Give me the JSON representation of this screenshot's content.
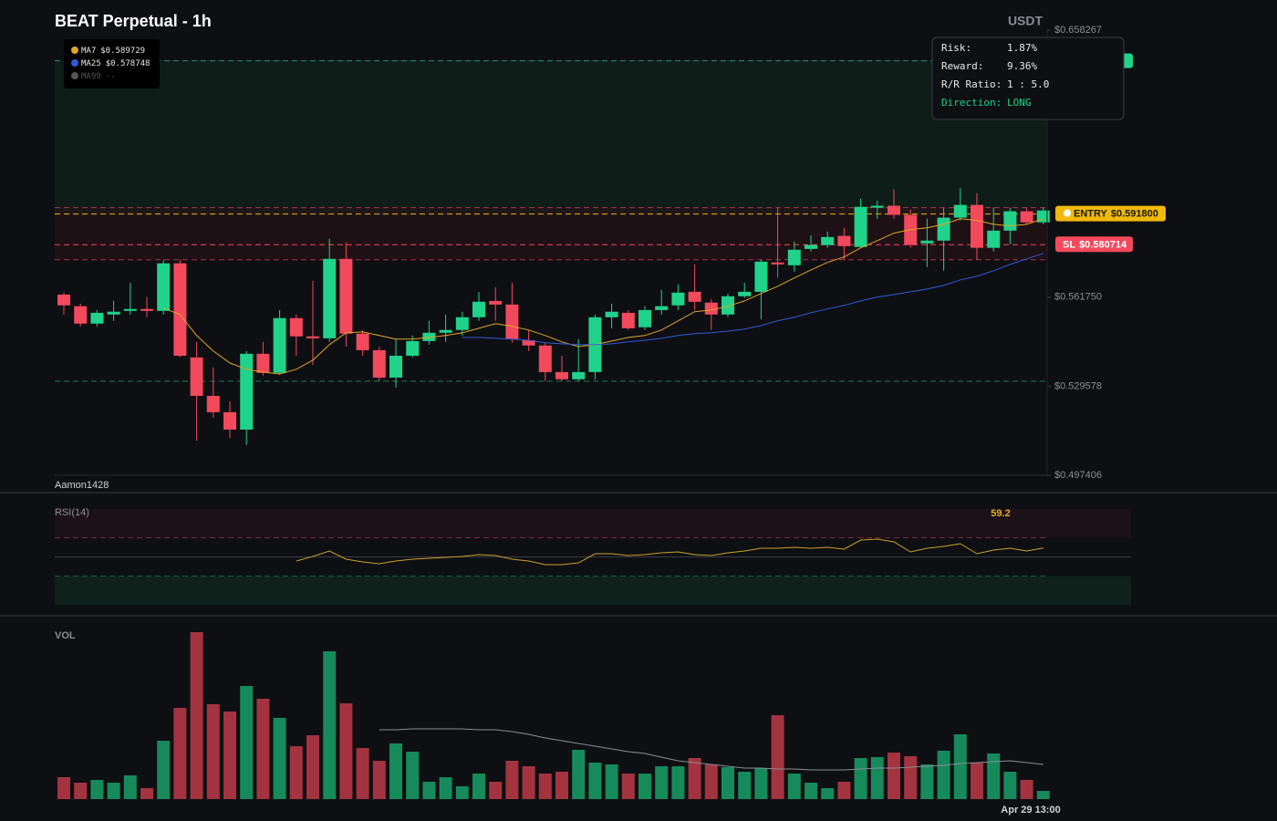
{
  "chart_data": [
    {
      "type": "candlestick",
      "title": "BEAT Perpetual - 1h",
      "currency": "USDT",
      "watermark": "Aamon1428",
      "up_color": "#1fd38a",
      "down_color": "#f2495c",
      "ylim": [
        0.497406,
        0.658267
      ],
      "yticks": [
        {
          "value": 0.658267,
          "label": "$0.658267"
        },
        {
          "value": 0.56175,
          "label": "$0.561750"
        },
        {
          "value": 0.529578,
          "label": "$0.529578"
        },
        {
          "value": 0.497406,
          "label": "$0.497406"
        }
      ],
      "open": [
        0.5627,
        0.5585,
        0.5522,
        0.5555,
        0.5568,
        0.5575,
        0.5568,
        0.574,
        0.54,
        0.5261,
        0.5202,
        0.5139,
        0.5413,
        0.5344,
        0.5542,
        0.5476,
        0.5469,
        0.5756,
        0.5486,
        0.5426,
        0.5327,
        0.5406,
        0.5459,
        0.5489,
        0.5499,
        0.5545,
        0.5604,
        0.5591,
        0.5462,
        0.5443,
        0.5347,
        0.5321,
        0.5347,
        0.5545,
        0.5561,
        0.5509,
        0.5571,
        0.5588,
        0.5637,
        0.5598,
        0.5555,
        0.5621,
        0.5637,
        0.5743,
        0.5733,
        0.5792,
        0.5806,
        0.5839,
        0.5799,
        0.5941,
        0.5948,
        0.5915,
        0.5812,
        0.5822,
        0.5905,
        0.5951,
        0.5796,
        0.5858,
        0.5928,
        0.5888
      ],
      "high": [
        0.5634,
        0.5594,
        0.5571,
        0.5604,
        0.567,
        0.5618,
        0.5753,
        0.5753,
        0.5456,
        0.5363,
        0.5241,
        0.5423,
        0.5456,
        0.5571,
        0.5555,
        0.5677,
        0.5829,
        0.5816,
        0.5499,
        0.5439,
        0.5466,
        0.5479,
        0.5532,
        0.5555,
        0.5565,
        0.5637,
        0.5654,
        0.567,
        0.5499,
        0.5453,
        0.5406,
        0.5466,
        0.5555,
        0.5594,
        0.5571,
        0.5585,
        0.5644,
        0.5664,
        0.5736,
        0.5611,
        0.5631,
        0.567,
        0.5753,
        0.5941,
        0.5819,
        0.5842,
        0.5855,
        0.5868,
        0.5974,
        0.5967,
        0.6007,
        0.5934,
        0.5901,
        0.5941,
        0.6013,
        0.5994,
        0.5941,
        0.5941,
        0.5941,
        0.5941
      ],
      "low": [
        0.5555,
        0.5512,
        0.5512,
        0.5532,
        0.5555,
        0.5545,
        0.5555,
        0.54,
        0.5099,
        0.5182,
        0.5109,
        0.5083,
        0.5334,
        0.5337,
        0.5406,
        0.5373,
        0.5456,
        0.5439,
        0.5406,
        0.5314,
        0.5291,
        0.54,
        0.5446,
        0.5456,
        0.5479,
        0.5532,
        0.5532,
        0.5453,
        0.5423,
        0.5314,
        0.5314,
        0.5314,
        0.5321,
        0.5505,
        0.5499,
        0.5499,
        0.5555,
        0.5571,
        0.5571,
        0.5499,
        0.5545,
        0.5614,
        0.5538,
        0.5687,
        0.571,
        0.5783,
        0.5796,
        0.5753,
        0.5796,
        0.5901,
        0.5901,
        0.5796,
        0.5726,
        0.5713,
        0.5895,
        0.5753,
        0.5783,
        0.5809,
        0.5881,
        0.5881
      ],
      "close": [
        0.5588,
        0.5522,
        0.5561,
        0.5565,
        0.5575,
        0.5568,
        0.574,
        0.5406,
        0.5261,
        0.5202,
        0.5139,
        0.5413,
        0.5344,
        0.5542,
        0.5476,
        0.5469,
        0.5756,
        0.5486,
        0.5426,
        0.5327,
        0.5406,
        0.5459,
        0.5489,
        0.5499,
        0.5545,
        0.5601,
        0.5591,
        0.5466,
        0.5443,
        0.5347,
        0.5321,
        0.5347,
        0.5545,
        0.5565,
        0.5505,
        0.5571,
        0.5585,
        0.5634,
        0.5601,
        0.5555,
        0.5621,
        0.5637,
        0.5746,
        0.5736,
        0.5789,
        0.5806,
        0.5835,
        0.5802,
        0.5944,
        0.5948,
        0.5915,
        0.5806,
        0.5822,
        0.5905,
        0.5951,
        0.5796,
        0.5858,
        0.5928,
        0.5888,
        0.5931
      ],
      "series": [
        {
          "name": "MA7",
          "color": "#e0a526",
          "legend_label": "$0.589729",
          "legend_value": 0.589729,
          "values": [
            null,
            null,
            null,
            null,
            null,
            null,
            0.5578,
            0.5555,
            0.5479,
            0.5423,
            0.538,
            0.5357,
            0.5347,
            0.534,
            0.5357,
            0.539,
            0.5446,
            0.5489,
            0.5492,
            0.5479,
            0.5466,
            0.5466,
            0.5472,
            0.5479,
            0.5489,
            0.5505,
            0.5522,
            0.5512,
            0.5499,
            0.5479,
            0.5456,
            0.5439,
            0.5446,
            0.5459,
            0.5472,
            0.5479,
            0.5499,
            0.5532,
            0.5565,
            0.5571,
            0.5585,
            0.5604,
            0.5631,
            0.5657,
            0.5687,
            0.5716,
            0.5743,
            0.5763,
            0.5796,
            0.5822,
            0.5849,
            0.5862,
            0.5868,
            0.5881,
            0.5901,
            0.5895,
            0.5881,
            0.5875,
            0.5881,
            0.5901
          ]
        },
        {
          "name": "MA25",
          "color": "#2f5bd8",
          "legend_label": "$0.578748",
          "legend_value": 0.578748,
          "values": [
            null,
            null,
            null,
            null,
            null,
            null,
            null,
            null,
            null,
            null,
            null,
            null,
            null,
            null,
            null,
            null,
            null,
            null,
            null,
            null,
            null,
            null,
            null,
            null,
            0.5472,
            0.5472,
            0.5469,
            0.5466,
            0.5462,
            0.5453,
            0.5449,
            0.5446,
            0.5446,
            0.5449,
            0.5456,
            0.5462,
            0.5469,
            0.5479,
            0.5486,
            0.5489,
            0.5495,
            0.5502,
            0.5515,
            0.5532,
            0.5545,
            0.5561,
            0.5575,
            0.5588,
            0.5604,
            0.5618,
            0.5627,
            0.5637,
            0.5647,
            0.566,
            0.568,
            0.5693,
            0.5713,
            0.5736,
            0.5756,
            0.5776
          ]
        },
        {
          "name": "MA99",
          "color": "#555555",
          "legend_label": "--",
          "values": []
        }
      ],
      "levels": [
        {
          "name": "ENTRY",
          "value": 0.5918,
          "label": "$0.591800",
          "color": "#f0b90b"
        },
        {
          "name": "SL",
          "value": 0.580714,
          "label": "$0.580714",
          "color": "#f2495c"
        }
      ],
      "take_profit": 0.6472,
      "zone_lines": [
        0.5941,
        0.5753
      ],
      "support": 0.5314,
      "trade_info": [
        {
          "label": "Risk:",
          "value": "1.87%"
        },
        {
          "label": "Reward:",
          "value": "9.36%"
        },
        {
          "label": "R/R Ratio:",
          "value": "1 : 5.0"
        },
        {
          "label": "Direction:",
          "value": "LONG"
        }
      ]
    },
    {
      "type": "line",
      "title": "RSI(14)",
      "color": "#c9a227",
      "ylim": [
        0,
        100
      ],
      "levels": [
        70,
        50,
        30
      ],
      "current": 59.2,
      "values": [
        null,
        null,
        null,
        null,
        null,
        null,
        null,
        null,
        null,
        null,
        null,
        null,
        null,
        null,
        45.7,
        50.5,
        56.2,
        47.6,
        44.8,
        42.9,
        45.7,
        47.6,
        48.6,
        49.5,
        50.5,
        52.4,
        51.4,
        47.6,
        45.7,
        41.9,
        41.9,
        43.8,
        53.3,
        53.3,
        51.4,
        52.4,
        54.3,
        55.2,
        52.4,
        51.4,
        54.3,
        56.2,
        59.0,
        59.0,
        60.0,
        59.0,
        60.0,
        58.1,
        67.6,
        68.6,
        65.7,
        55.2,
        59.0,
        61.0,
        63.8,
        53.3,
        57.1,
        59.0,
        56.2,
        59.2
      ]
    },
    {
      "type": "bar",
      "title": "VOL",
      "time_label": "Apr 29 13:00",
      "ylim": [
        0,
        190
      ],
      "up_color": "#178a5c",
      "down_color": "#a3343f",
      "ma_color": "#8a8d94",
      "values": [
        24,
        18,
        21,
        18,
        26,
        12,
        64,
        100,
        183,
        104,
        96,
        124,
        110,
        89,
        58,
        70,
        162,
        105,
        56,
        42,
        61,
        52,
        19,
        24,
        14,
        28,
        19,
        42,
        36,
        28,
        30,
        54,
        40,
        38,
        28,
        28,
        36,
        36,
        45,
        38,
        35,
        30,
        34,
        92,
        28,
        18,
        12,
        19,
        45,
        46,
        51,
        47,
        38,
        53,
        71,
        40,
        50,
        30,
        21,
        9
      ],
      "ma": [
        null,
        null,
        null,
        null,
        null,
        null,
        null,
        null,
        null,
        null,
        null,
        null,
        null,
        null,
        null,
        null,
        null,
        null,
        null,
        76,
        76,
        77,
        77,
        77,
        77,
        76,
        76,
        74,
        71,
        67,
        64,
        61,
        58,
        55,
        52,
        50,
        46,
        42,
        40,
        38,
        36,
        34,
        34,
        33,
        33,
        32,
        32,
        32,
        33,
        34,
        34,
        35,
        36,
        37,
        39,
        40,
        41,
        42,
        40,
        38
      ]
    }
  ]
}
